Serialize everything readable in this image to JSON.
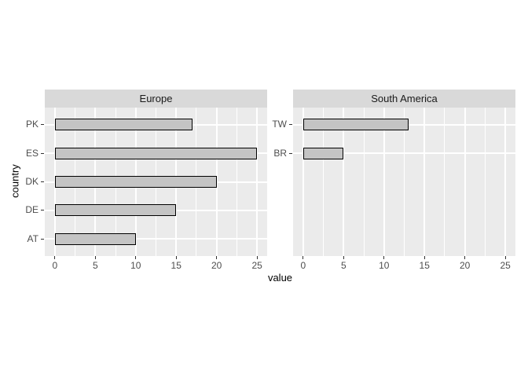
{
  "chart_data": {
    "type": "bar",
    "orientation": "horizontal",
    "title": "",
    "xlabel": "value",
    "ylabel": "country",
    "xlim": [
      0,
      25
    ],
    "x_ticks": [
      0,
      5,
      10,
      15,
      20,
      25
    ],
    "x_minor_ticks": [
      2.5,
      7.5,
      12.5,
      17.5,
      22.5
    ],
    "grid": true,
    "legend": "none",
    "facets": [
      {
        "label": "Europe",
        "categories": [
          "PK",
          "ES",
          "DK",
          "DE",
          "AT"
        ],
        "values": [
          17,
          25,
          20,
          15,
          10
        ]
      },
      {
        "label": "South America",
        "categories": [
          "TW",
          "BR"
        ],
        "values": [
          13,
          5
        ]
      }
    ],
    "colors": {
      "panel_bg": "#EBEBEB",
      "strip_bg": "#D9D9D9",
      "bar_fill": "#C4C4C4",
      "bar_border": "#000000",
      "gridline": "#FFFFFF",
      "tick_text": "#4D4D4D",
      "title_text": "#000000",
      "tick_mark": "#333333"
    }
  }
}
